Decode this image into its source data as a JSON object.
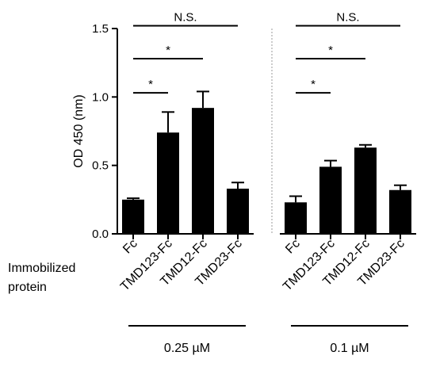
{
  "chart_data": {
    "type": "bar",
    "ylabel": "OD 450 (nm)",
    "ylim": [
      0,
      1.5
    ],
    "yticks": [
      "0.0",
      "0.5",
      "1.0",
      "1.5"
    ],
    "row_label": "Immobilized\nprotein",
    "colors": {
      "bar": "#000000",
      "divider": "#999999"
    },
    "groups": [
      {
        "label": "0.25 µM",
        "categories": [
          "Fc",
          "TMD123-Fc",
          "TMD12-Fc",
          "TMD23-Fc"
        ],
        "values": [
          0.25,
          0.74,
          0.92,
          0.33
        ],
        "errors": [
          0.01,
          0.15,
          0.12,
          0.045
        ],
        "significance": [
          {
            "from": 0,
            "to": 1,
            "label": "*",
            "level": 1.03
          },
          {
            "from": 0,
            "to": 2,
            "label": "*",
            "level": 1.28
          },
          {
            "from": 0,
            "to": 3,
            "label": "N.S.",
            "level": 1.52
          }
        ]
      },
      {
        "label": "0.1 µM",
        "categories": [
          "Fc",
          "TMD123-Fc",
          "TMD12-Fc",
          "TMD23-Fc"
        ],
        "values": [
          0.23,
          0.49,
          0.63,
          0.32
        ],
        "errors": [
          0.045,
          0.045,
          0.02,
          0.035
        ],
        "significance": [
          {
            "from": 0,
            "to": 1,
            "label": "*",
            "level": 1.03
          },
          {
            "from": 0,
            "to": 2,
            "label": "*",
            "level": 1.28
          },
          {
            "from": 0,
            "to": 3,
            "label": "N.S.",
            "level": 1.52
          }
        ]
      }
    ]
  }
}
